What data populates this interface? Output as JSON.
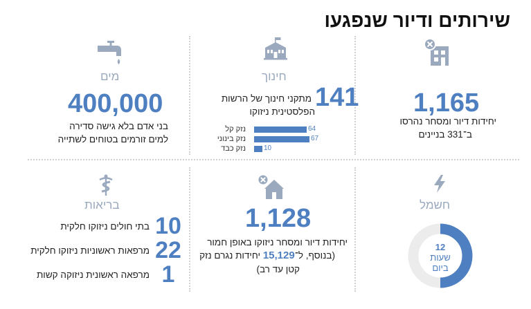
{
  "title": "שירותים ודיור שנפגעו",
  "colors": {
    "accent": "#4e7fc1",
    "muted_icon": "#9aa9bd",
    "divider": "#cfcfcf"
  },
  "housing_destroyed": {
    "icon": "building-destroyed-icon",
    "value": "1,165",
    "line1": "יחידות דיור ומסחר נהרסו",
    "line2": "ב־331 בניינים"
  },
  "education": {
    "icon": "school-icon",
    "label": "חינוך",
    "value": "141",
    "line1": "מתקני חינוך של הרשות",
    "line2": "הפלסטינית ניזוקו",
    "bars": [
      {
        "label": "נזק קל",
        "value": 64
      },
      {
        "label": "נזק בינוני",
        "value": 67
      },
      {
        "label": "נזק כבד",
        "value": 10
      }
    ]
  },
  "water": {
    "icon": "faucet-icon",
    "label": "מים",
    "value": "400,000",
    "line1": "בני אדם בלא גישה סדירה",
    "line2": "למים זורמים בטוחים לשתייה"
  },
  "electricity": {
    "icon": "lightning-icon",
    "label": "חשמל",
    "clock_fraction": 0.5,
    "clock_number": "12",
    "clock_unit": "שעות",
    "clock_day": "ביום"
  },
  "housing_damaged": {
    "icon": "house-damaged-icon",
    "value": "1,128",
    "line1": "יחידות דיור ומסחר ניזוקו באופן חמור",
    "line2_pre": "(בנוסף, ל־",
    "line2_num": "15,129",
    "line2_post": " יחידות נגרם נזק",
    "line3": "קטן עד רב)"
  },
  "health": {
    "icon": "caduceus-icon",
    "label": "בריאות",
    "rows": [
      {
        "value": "10",
        "text": "בתי חולים ניזוקו חלקית"
      },
      {
        "value": "22",
        "text": "מרפאות ראשוניות ניזוקו חלקית"
      },
      {
        "value": "1",
        "text": "מרפאה ראשונית ניזוקה קשות"
      }
    ]
  }
}
